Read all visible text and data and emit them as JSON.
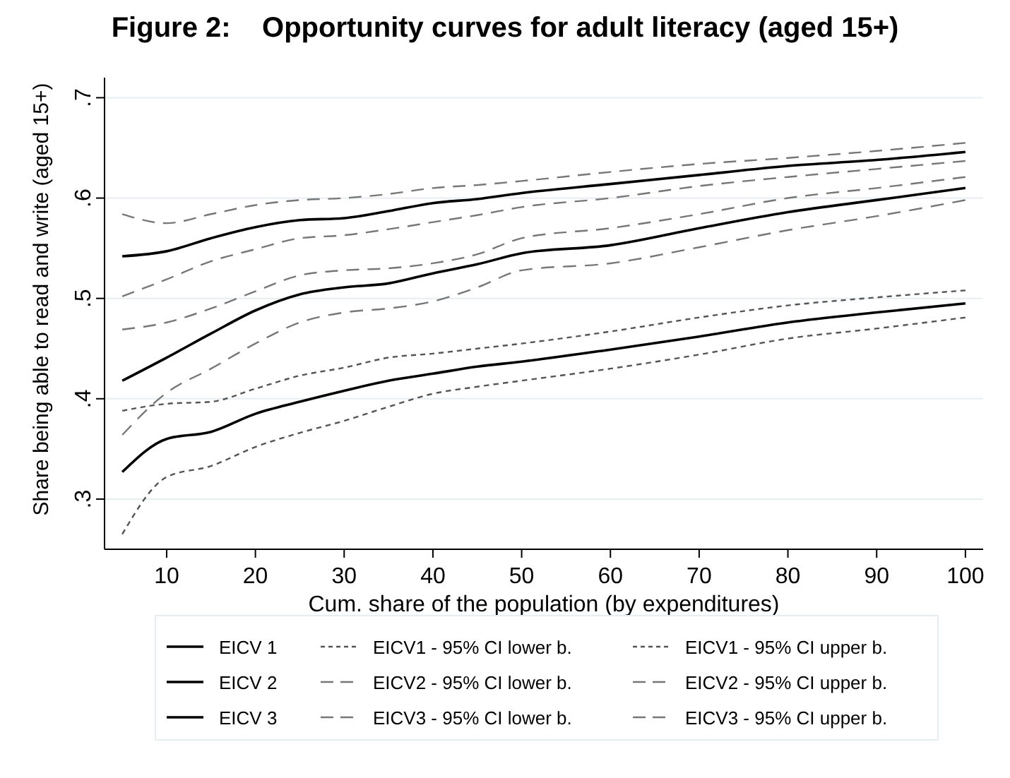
{
  "chart_data": {
    "type": "line",
    "title": "Figure 2:    Opportunity curves for adult literacy (aged 15+)",
    "xlabel": "Cum. share of the population (by expenditures)",
    "ylabel": "Share being able to read and write (aged 15+)",
    "x": [
      5,
      10,
      15,
      20,
      25,
      30,
      35,
      40,
      45,
      50,
      60,
      70,
      80,
      90,
      100
    ],
    "series": [
      {
        "name": "EICV 1",
        "color": "#000000",
        "line_style": "solid",
        "values": [
          0.327,
          0.36,
          0.367,
          0.385,
          0.397,
          0.408,
          0.418,
          0.425,
          0.432,
          0.437,
          0.449,
          0.462,
          0.476,
          0.486,
          0.495
        ]
      },
      {
        "name": "EICV1 - 95% CI lower b.",
        "color": "#555555",
        "line_style": "dotted",
        "values": [
          0.265,
          0.322,
          0.333,
          0.352,
          0.366,
          0.378,
          0.392,
          0.405,
          0.412,
          0.418,
          0.43,
          0.444,
          0.46,
          0.47,
          0.481
        ]
      },
      {
        "name": "EICV1 - 95% CI upper b.",
        "color": "#555555",
        "line_style": "dotted",
        "values": [
          0.388,
          0.395,
          0.397,
          0.41,
          0.423,
          0.431,
          0.441,
          0.445,
          0.45,
          0.455,
          0.467,
          0.481,
          0.493,
          0.501,
          0.508
        ]
      },
      {
        "name": "EICV 2",
        "color": "#000000",
        "line_style": "solid",
        "values": [
          0.418,
          0.441,
          0.465,
          0.488,
          0.504,
          0.511,
          0.515,
          0.525,
          0.534,
          0.545,
          0.553,
          0.57,
          0.586,
          0.598,
          0.61
        ]
      },
      {
        "name": "EICV2 - 95% CI lower b.",
        "color": "#777777",
        "line_style": "dashed",
        "values": [
          0.364,
          0.406,
          0.43,
          0.455,
          0.476,
          0.486,
          0.49,
          0.497,
          0.511,
          0.528,
          0.535,
          0.551,
          0.568,
          0.582,
          0.598
        ]
      },
      {
        "name": "EICV2 - 95% CI upper b.",
        "color": "#777777",
        "line_style": "dashed",
        "values": [
          0.469,
          0.476,
          0.49,
          0.507,
          0.523,
          0.528,
          0.53,
          0.535,
          0.544,
          0.56,
          0.57,
          0.584,
          0.6,
          0.61,
          0.621
        ]
      },
      {
        "name": "EICV 3",
        "color": "#000000",
        "line_style": "solid",
        "values": [
          0.542,
          0.547,
          0.56,
          0.571,
          0.578,
          0.58,
          0.587,
          0.595,
          0.599,
          0.605,
          0.614,
          0.623,
          0.632,
          0.638,
          0.646
        ]
      },
      {
        "name": "EICV3 - 95% CI lower b.",
        "color": "#777777",
        "line_style": "dashed",
        "values": [
          0.502,
          0.519,
          0.537,
          0.549,
          0.56,
          0.563,
          0.569,
          0.576,
          0.583,
          0.591,
          0.6,
          0.612,
          0.621,
          0.629,
          0.637
        ]
      },
      {
        "name": "EICV3 - 95% CI upper b.",
        "color": "#777777",
        "line_style": "dashed",
        "values": [
          0.584,
          0.575,
          0.584,
          0.593,
          0.598,
          0.6,
          0.604,
          0.61,
          0.613,
          0.617,
          0.626,
          0.634,
          0.64,
          0.647,
          0.655
        ]
      }
    ],
    "xlim": [
      3,
      102
    ],
    "xticks": [
      10,
      20,
      30,
      40,
      50,
      60,
      70,
      80,
      90,
      100
    ],
    "ylim": [
      0.25,
      0.72
    ],
    "yticks": [
      {
        "value": 0.3,
        "label": ".3"
      },
      {
        "value": 0.4,
        "label": ".4"
      },
      {
        "value": 0.5,
        "label": ".5"
      },
      {
        "value": 0.6,
        "label": ".6"
      },
      {
        "value": 0.7,
        "label": ".7"
      }
    ],
    "grid": "y",
    "legend": "bottom"
  }
}
